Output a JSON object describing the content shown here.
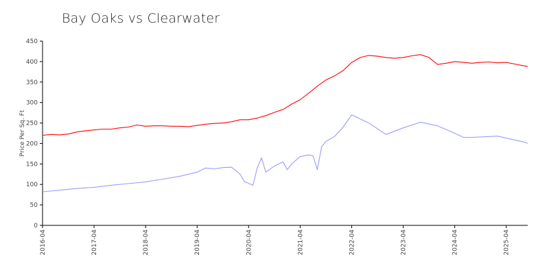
{
  "chart_data": {
    "type": "line",
    "title": "Bay Oaks vs Clearwater",
    "xlabel": "",
    "ylabel": "Price Per Sq. Ft",
    "ylim": [
      0,
      450
    ],
    "yticks": [
      0,
      50,
      100,
      150,
      200,
      250,
      300,
      350,
      400,
      450
    ],
    "xlim": [
      "2016-04",
      "2025-09"
    ],
    "xticks": [
      "2016-04",
      "2017-04",
      "2018-04",
      "2019-04",
      "2020-04",
      "2021-04",
      "2022-04",
      "2023-04",
      "2024-04",
      "2025-04"
    ],
    "grid": false,
    "legend": "none",
    "series": [
      {
        "color": "#ff0000",
        "points": [
          [
            "2016-04",
            220
          ],
          [
            "2016-06",
            222
          ],
          [
            "2016-08",
            221
          ],
          [
            "2016-10",
            223
          ],
          [
            "2016-12",
            228
          ],
          [
            "2017-02",
            231
          ],
          [
            "2017-04",
            233
          ],
          [
            "2017-06",
            235
          ],
          [
            "2017-08",
            235
          ],
          [
            "2017-10",
            238
          ],
          [
            "2017-12",
            240
          ],
          [
            "2018-02",
            245
          ],
          [
            "2018-04",
            242
          ],
          [
            "2018-06",
            243
          ],
          [
            "2018-08",
            243
          ],
          [
            "2018-10",
            242
          ],
          [
            "2018-12",
            242
          ],
          [
            "2019-02",
            241
          ],
          [
            "2019-04",
            244
          ],
          [
            "2019-06",
            247
          ],
          [
            "2019-08",
            249
          ],
          [
            "2019-10",
            250
          ],
          [
            "2019-12",
            253
          ],
          [
            "2020-02",
            258
          ],
          [
            "2020-04",
            258
          ],
          [
            "2020-06",
            262
          ],
          [
            "2020-08",
            268
          ],
          [
            "2020-10",
            276
          ],
          [
            "2020-12",
            283
          ],
          [
            "2021-02",
            296
          ],
          [
            "2021-04",
            307
          ],
          [
            "2021-06",
            323
          ],
          [
            "2021-08",
            340
          ],
          [
            "2021-10",
            355
          ],
          [
            "2021-12",
            365
          ],
          [
            "2022-02",
            378
          ],
          [
            "2022-04",
            398
          ],
          [
            "2022-06",
            410
          ],
          [
            "2022-08",
            415
          ],
          [
            "2022-10",
            413
          ],
          [
            "2022-12",
            410
          ],
          [
            "2023-02",
            408
          ],
          [
            "2023-04",
            410
          ],
          [
            "2023-06",
            414
          ],
          [
            "2023-08",
            417
          ],
          [
            "2023-10",
            410
          ],
          [
            "2023-12",
            393
          ],
          [
            "2024-02",
            396
          ],
          [
            "2024-04",
            400
          ],
          [
            "2024-06",
            398
          ],
          [
            "2024-08",
            396
          ],
          [
            "2024-10",
            398
          ],
          [
            "2024-12",
            399
          ],
          [
            "2025-02",
            397
          ],
          [
            "2025-04",
            398
          ],
          [
            "2025-06",
            394
          ],
          [
            "2025-08",
            390
          ],
          [
            "2025-09",
            388
          ]
        ]
      },
      {
        "color": "#9999ff",
        "points": [
          [
            "2016-04",
            82
          ],
          [
            "2016-08",
            86
          ],
          [
            "2016-12",
            90
          ],
          [
            "2017-04",
            93
          ],
          [
            "2017-08",
            98
          ],
          [
            "2017-12",
            102
          ],
          [
            "2018-04",
            106
          ],
          [
            "2018-08",
            113
          ],
          [
            "2018-12",
            120
          ],
          [
            "2019-04",
            130
          ],
          [
            "2019-06",
            140
          ],
          [
            "2019-08",
            138
          ],
          [
            "2019-10",
            141
          ],
          [
            "2019-12",
            142
          ],
          [
            "2020-02",
            125
          ],
          [
            "2020-03",
            107
          ],
          [
            "2020-05",
            98
          ],
          [
            "2020-06",
            140
          ],
          [
            "2020-07",
            165
          ],
          [
            "2020-08",
            130
          ],
          [
            "2020-10",
            145
          ],
          [
            "2020-12",
            155
          ],
          [
            "2021-01",
            136
          ],
          [
            "2021-02",
            150
          ],
          [
            "2021-04",
            168
          ],
          [
            "2021-06",
            172
          ],
          [
            "2021-07",
            170
          ],
          [
            "2021-08",
            136
          ],
          [
            "2021-09",
            192
          ],
          [
            "2021-10",
            205
          ],
          [
            "2021-12",
            217
          ],
          [
            "2022-02",
            240
          ],
          [
            "2022-04",
            270
          ],
          [
            "2022-08",
            250
          ],
          [
            "2022-12",
            222
          ],
          [
            "2023-04",
            238
          ],
          [
            "2023-08",
            252
          ],
          [
            "2023-12",
            243
          ],
          [
            "2024-04",
            225
          ],
          [
            "2024-06",
            215
          ],
          [
            "2024-08",
            215
          ],
          [
            "2024-12",
            217
          ],
          [
            "2025-02",
            218
          ],
          [
            "2025-04",
            213
          ],
          [
            "2025-08",
            204
          ],
          [
            "2025-09",
            200
          ]
        ]
      }
    ]
  }
}
